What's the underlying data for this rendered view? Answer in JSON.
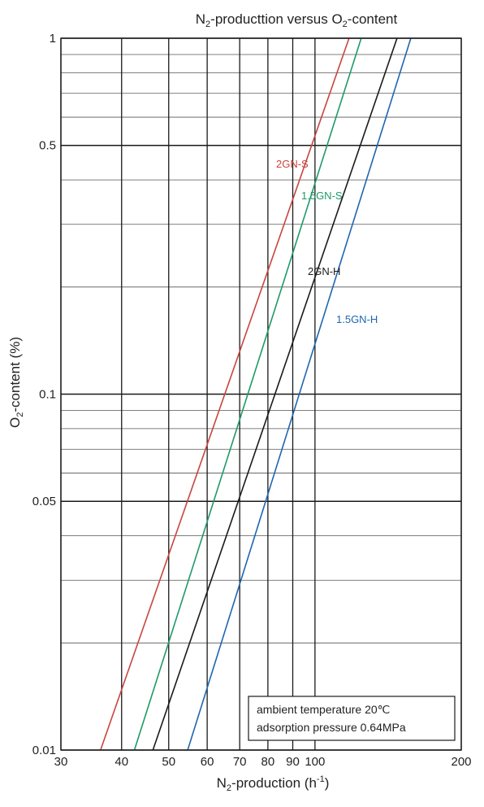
{
  "chart_data": {
    "type": "line",
    "title_parts": [
      "N",
      "2",
      "-producttion versus O",
      "2",
      "-content"
    ],
    "xlabel_parts": [
      "N",
      "2",
      "-production (h",
      "-1",
      ")"
    ],
    "ylabel_parts": [
      "O",
      "2",
      "-content (%)"
    ],
    "x_scale": "log",
    "y_scale": "log",
    "xlim": [
      30,
      200
    ],
    "ylim": [
      0.01,
      1
    ],
    "x_ticks": [
      "30",
      "40",
      "50",
      "60",
      "70",
      "80",
      "90",
      "100",
      "200"
    ],
    "x_tick_values": [
      30,
      40,
      50,
      60,
      70,
      80,
      90,
      100,
      200
    ],
    "y_ticks": [
      "0.01",
      "0.05",
      "0.1",
      "0.5",
      "1"
    ],
    "y_tick_values": [
      0.01,
      0.05,
      0.1,
      0.5,
      1
    ],
    "grid": true,
    "series": [
      {
        "name": "2GN-S",
        "color": "#c8453f",
        "x": [
          36.2,
          117.5
        ],
        "y": [
          0.01,
          1
        ]
      },
      {
        "name": "1.5GN-S",
        "color": "#1e9a68",
        "x": [
          42.5,
          124.5
        ],
        "y": [
          0.01,
          1
        ]
      },
      {
        "name": "2GN-H",
        "color": "#1a1a1a",
        "x": [
          46.4,
          147.5
        ],
        "y": [
          0.01,
          1
        ]
      },
      {
        "name": "1.5GN-H",
        "color": "#1f66b0",
        "x": [
          54.7,
          157.5
        ],
        "y": [
          0.01,
          1
        ]
      }
    ],
    "annotation": [
      "ambient temperature 20℃",
      "adsorption pressure  0.64MPa"
    ]
  }
}
